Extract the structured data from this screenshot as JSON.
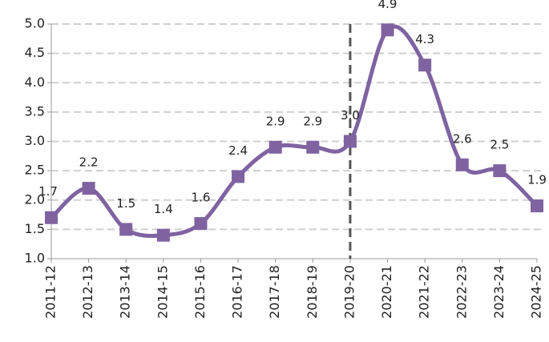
{
  "chart_data": {
    "type": "line",
    "categories": [
      "2011-12",
      "2012-13",
      "2013-14",
      "2014-15",
      "2015-16",
      "2016-17",
      "2017-18",
      "2018-19",
      "2019-20",
      "2020-21",
      "2021-22",
      "2022-23",
      "2023-24",
      "2024-25"
    ],
    "series": [
      {
        "color": "#7f63a1",
        "values": [
          1.7,
          2.2,
          1.5,
          1.4,
          1.6,
          2.4,
          2.9,
          2.9,
          3.0,
          4.9,
          4.3,
          2.6,
          2.5,
          1.9
        ],
        "value_labels": [
          "1.7",
          "2.2",
          "1.5",
          "1.4",
          "1.6",
          "2.4",
          "2.9",
          "2.9",
          "3.0",
          "4.9",
          "4.3",
          "2.6",
          "2.5",
          "1.9"
        ]
      }
    ],
    "ylim": [
      1.0,
      5.0
    ],
    "yticks": [
      {
        "value": 1.0,
        "label": "1.0"
      },
      1.5,
      {
        "value": 2.0,
        "label": "2.0"
      },
      2.5,
      {
        "value": 3.0,
        "label": "3.0"
      },
      3.5,
      {
        "value": 4.0,
        "label": "4.0"
      },
      4.5,
      {
        "value": 5.0,
        "label": "5.0"
      }
    ],
    "grid": true,
    "smooth": true,
    "marker": "square",
    "reference_line": "2019-20"
  }
}
